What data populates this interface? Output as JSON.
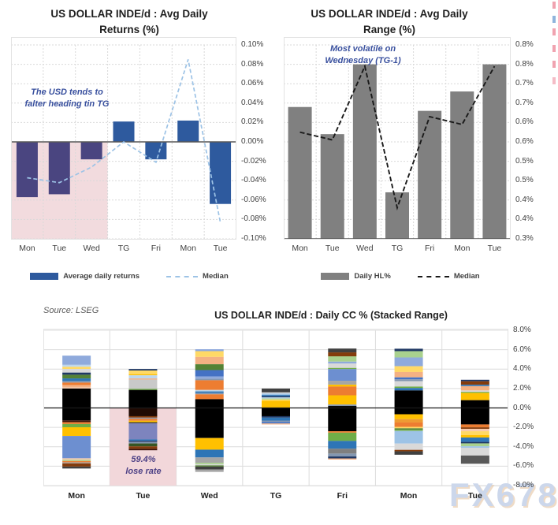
{
  "source_note": "Source: LSEG",
  "watermark": "FX678",
  "edge_marks": [
    {
      "y": 2,
      "color": "#f0a3b0"
    },
    {
      "y": 20,
      "color": "#8fb4dc"
    },
    {
      "y": 36,
      "color": "#f0a3b0"
    },
    {
      "y": 57,
      "color": "#f0a3b0"
    },
    {
      "y": 77,
      "color": "#f0a3b0"
    },
    {
      "y": 98,
      "color": "#f4bcc6"
    }
  ],
  "chart_data": [
    {
      "type": "bar",
      "title_line1": "US DOLLAR INDE/d : Avg Daily",
      "title_line2": "Returns (%)",
      "annotation": [
        "The USD tends to",
        "falter heading tin TG"
      ],
      "annotation_color": "#39509E",
      "categories": [
        "Mon",
        "Tue",
        "Wed",
        "TG",
        "Fri",
        "Mon",
        "Tue"
      ],
      "series": [
        {
          "name": "Average daily returns",
          "type": "bar",
          "values": [
            -0.057,
            -0.054,
            -0.018,
            0.021,
            -0.018,
            0.022,
            -0.064
          ],
          "bar_colors": [
            "#4A4580",
            "#4A4580",
            "#4A4580",
            "#2E5A9E",
            "#2E5A9E",
            "#2E5A9E",
            "#2E5A9E"
          ]
        },
        {
          "name": "Median",
          "type": "line",
          "dashed": true,
          "color": "#9DC3E6",
          "values": [
            -0.037,
            -0.042,
            -0.026,
            0.0,
            -0.021,
            0.085,
            -0.083
          ]
        }
      ],
      "ylim": [
        -0.1,
        0.1
      ],
      "yticks": [
        "0.10%",
        "0.08%",
        "0.06%",
        "0.04%",
        "0.02%",
        "0.00%",
        "-0.02%",
        "-0.04%",
        "-0.06%",
        "-0.08%",
        "-0.10%"
      ],
      "highlight": {
        "note": "pink shading over Mon-Wed below zero",
        "color": "#F2DBDE"
      },
      "legend": [
        {
          "label": "Average daily returns",
          "swatch": "#2E5A9E",
          "dashed": false
        },
        {
          "label": "Median",
          "swatch": "#9DC3E6",
          "dashed": true
        }
      ],
      "legend_position": "bottom"
    },
    {
      "type": "bar",
      "title_line1": "US DOLLAR INDE/d : Avg Daily",
      "title_line2": "Range (%)",
      "annotation": [
        "Most volatile on",
        "Wednesday (TG-1)"
      ],
      "annotation_color": "#39509E",
      "categories": [
        "Mon",
        "Tue",
        "Wed",
        "TG",
        "Fri",
        "Mon",
        "Tue"
      ],
      "series": [
        {
          "name": "Daily HL%",
          "type": "bar",
          "color": "#808080",
          "values": [
            0.64,
            0.57,
            0.75,
            0.42,
            0.63,
            0.68,
            0.75
          ]
        },
        {
          "name": "Median",
          "type": "line",
          "dashed": true,
          "color": "#1a1a1a",
          "values": [
            0.575,
            0.555,
            0.745,
            0.38,
            0.615,
            0.595,
            0.745
          ]
        }
      ],
      "ylim": [
        0.3,
        0.8
      ],
      "yticks": [
        "0.8%",
        "0.8%",
        "0.7%",
        "0.7%",
        "0.6%",
        "0.6%",
        "0.5%",
        "0.5%",
        "0.4%",
        "0.4%",
        "0.3%"
      ],
      "legend": [
        {
          "label": "Daily HL%",
          "swatch": "#808080",
          "dashed": false
        },
        {
          "label": "Median",
          "swatch": "#1a1a1a",
          "dashed": true
        }
      ],
      "legend_position": "bottom"
    },
    {
      "type": "stacked-bar",
      "title": "US DOLLAR INDE/d : Daily CC % (Stacked Range)",
      "annotation": [
        "59.4%",
        "lose rate"
      ],
      "annotation_color": "#4C4085",
      "highlight_category": "Tue",
      "highlight_color": "#F2D7DA",
      "categories": [
        "Mon",
        "Tue",
        "Wed",
        "TG",
        "Fri",
        "Mon",
        "Tue"
      ],
      "ylim": [
        -8,
        8
      ],
      "yticks": [
        "8.0%",
        "6.0%",
        "4.0%",
        "2.0%",
        "0.0%",
        "-2.0%",
        "-4.0%",
        "-6.0%",
        "-8.0%"
      ],
      "bars": [
        {
          "cat": "Mon",
          "pos": [
            [
              "#8FAADC",
              0.95
            ],
            [
              "#BDD7EE",
              0.2
            ],
            [
              "#FFD966",
              0.22
            ],
            [
              "#D9D9D9",
              0.38
            ],
            [
              "#1F3864",
              0.22
            ],
            [
              "#548235",
              0.38
            ],
            [
              "#2E75B6",
              0.27
            ],
            [
              "#8497B0",
              0.16
            ],
            [
              "#ED7D31",
              0.27
            ],
            [
              "#F4B183",
              0.22
            ],
            [
              "#F8CBAD",
              0.12
            ],
            [
              "#000000",
              2.0
            ]
          ],
          "neg": [
            [
              "#000000",
              1.28
            ],
            [
              "#3B1208",
              0.19
            ],
            [
              "#ED7D31",
              0.19
            ],
            [
              "#70AD47",
              0.33
            ],
            [
              "#FFC000",
              0.9
            ],
            [
              "#6D8FD0",
              2.3
            ],
            [
              "#F8CBAD",
              0.15
            ],
            [
              "#A9D18E",
              0.13
            ],
            [
              "#ED7D31",
              0.13
            ],
            [
              "#A6A6A6",
              0.11
            ],
            [
              "#843C0C",
              0.33
            ],
            [
              "#404040",
              0.2
            ]
          ]
        },
        {
          "cat": "Tue",
          "pos": [
            [
              "#1F3864",
              0.15
            ],
            [
              "#FFD966",
              0.38
            ],
            [
              "#FFC000",
              0.12
            ],
            [
              "#BDD7EE",
              0.32
            ],
            [
              "#F4B183",
              0.12
            ],
            [
              "#C9C9C9",
              0.95
            ],
            [
              "#70AD47",
              0.12
            ],
            [
              "#000000",
              1.85
            ]
          ],
          "neg": [
            [
              "#200A03",
              0.85
            ],
            [
              "#843C0C",
              0.15
            ],
            [
              "#8497B0",
              0.12
            ],
            [
              "#ED7D31",
              0.2
            ],
            [
              "#FFC000",
              0.15
            ],
            [
              "#404040",
              0.12
            ],
            [
              "#7D84BE",
              1.65
            ],
            [
              "#2E75B6",
              0.15
            ],
            [
              "#1F3864",
              0.12
            ],
            [
              "#8497B0",
              0.15
            ],
            [
              "#375623",
              0.3
            ],
            [
              "#843C0C",
              0.25
            ],
            [
              "#3B1208",
              0.15
            ]
          ]
        },
        {
          "cat": "Wed",
          "pos": [
            [
              "#8FAADC",
              0.2
            ],
            [
              "#FFD966",
              0.6
            ],
            [
              "#F4B183",
              0.75
            ],
            [
              "#548235",
              0.6
            ],
            [
              "#4472C4",
              0.65
            ],
            [
              "#8FAADC",
              0.25
            ],
            [
              "#8497B0",
              0.15
            ],
            [
              "#ED7D31",
              1.0
            ],
            [
              "#BDD7EE",
              0.15
            ],
            [
              "#2E75B6",
              0.15
            ],
            [
              "#8497B0",
              0.15
            ],
            [
              "#ED7D31",
              0.5
            ],
            [
              "#000000",
              0.9
            ]
          ],
          "neg": [
            [
              "#000000",
              3.1
            ],
            [
              "#FFC000",
              1.2
            ],
            [
              "#2E75B6",
              0.8
            ],
            [
              "#A6A6A6",
              0.55
            ],
            [
              "#A9D18E",
              0.15
            ],
            [
              "#D9D9D9",
              0.12
            ],
            [
              "#548235",
              0.12
            ],
            [
              "#404040",
              0.3
            ],
            [
              "#A6A6A6",
              0.25
            ]
          ]
        },
        {
          "cat": "TG",
          "pos": [
            [
              "#404040",
              0.4
            ],
            [
              "#D9D9D9",
              0.12
            ],
            [
              "#9DC3E6",
              0.15
            ],
            [
              "#2E75B6",
              0.12
            ],
            [
              "#1F3864",
              0.12
            ],
            [
              "#BDD7EE",
              0.12
            ],
            [
              "#A9D18E",
              0.1
            ],
            [
              "#FFD966",
              0.12
            ],
            [
              "#FFC000",
              0.75
            ]
          ],
          "neg": [
            [
              "#000000",
              0.85
            ],
            [
              "#1F3864",
              0.15
            ],
            [
              "#2E75B6",
              0.3
            ],
            [
              "#8497B0",
              0.15
            ],
            [
              "#4472C4",
              0.15
            ],
            [
              "#F4B183",
              0.1
            ]
          ]
        },
        {
          "cat": "Fri",
          "pos": [
            [
              "#404040",
              0.4
            ],
            [
              "#843C0C",
              0.4
            ],
            [
              "#A9D18E",
              0.55
            ],
            [
              "#8FAADC",
              0.2
            ],
            [
              "#D9D9D9",
              0.45
            ],
            [
              "#70AD47",
              0.12
            ],
            [
              "#6D8FD0",
              1.2
            ],
            [
              "#A6A6A6",
              0.4
            ],
            [
              "#FFC000",
              0.2
            ],
            [
              "#ED7D31",
              0.9
            ],
            [
              "#FFC000",
              0.95
            ],
            [
              "#8497B0",
              0.15
            ],
            [
              "#000000",
              0.2
            ]
          ],
          "neg": [
            [
              "#000000",
              2.4
            ],
            [
              "#ED7D31",
              0.15
            ],
            [
              "#70AD47",
              0.85
            ],
            [
              "#2E75B6",
              0.8
            ],
            [
              "#7F7F7F",
              0.5
            ],
            [
              "#8497B0",
              0.3
            ],
            [
              "#1F3864",
              0.2
            ],
            [
              "#F4B183",
              0.12
            ]
          ]
        },
        {
          "cat": "Mon",
          "pos": [
            [
              "#1F3864",
              0.25
            ],
            [
              "#A9D18E",
              0.65
            ],
            [
              "#8FAADC",
              0.9
            ],
            [
              "#FFD966",
              0.6
            ],
            [
              "#F4B183",
              0.55
            ],
            [
              "#4472C4",
              0.2
            ],
            [
              "#8497B0",
              0.2
            ],
            [
              "#D9D9D9",
              0.55
            ],
            [
              "#70AD47",
              0.15
            ],
            [
              "#2E75B6",
              0.25
            ],
            [
              "#000000",
              1.8
            ]
          ],
          "neg": [
            [
              "#000000",
              0.65
            ],
            [
              "#FFC000",
              0.5
            ],
            [
              "#ED9B33",
              0.35
            ],
            [
              "#ED7D31",
              0.45
            ],
            [
              "#FFD966",
              0.15
            ],
            [
              "#548235",
              0.15
            ],
            [
              "#70AD47",
              0.12
            ],
            [
              "#9DC3E6",
              1.3
            ],
            [
              "#D9D9D9",
              0.65
            ],
            [
              "#843C0C",
              0.15
            ],
            [
              "#404040",
              0.35
            ]
          ]
        },
        {
          "cat": "Tue",
          "pos": [
            [
              "#1F3864",
              0.15
            ],
            [
              "#843C0C",
              0.35
            ],
            [
              "#2E75B6",
              0.15
            ],
            [
              "#F4B183",
              0.45
            ],
            [
              "#D9D9D9",
              0.15
            ],
            [
              "#70AD47",
              0.1
            ],
            [
              "#FFC000",
              0.75
            ],
            [
              "#000000",
              0.8
            ]
          ],
          "neg": [
            [
              "#000000",
              1.7
            ],
            [
              "#ED7D31",
              0.3
            ],
            [
              "#843C0C",
              0.15
            ],
            [
              "#F8CBAD",
              0.25
            ],
            [
              "#FFD966",
              0.4
            ],
            [
              "#FFC000",
              0.25
            ],
            [
              "#2E75B6",
              0.45
            ],
            [
              "#1F3864",
              0.15
            ],
            [
              "#A9D18E",
              0.3
            ],
            [
              "#9DC3E6",
              0.15
            ],
            [
              "#D9D9D9",
              0.8
            ],
            [
              "#595959",
              0.85
            ]
          ]
        }
      ]
    }
  ]
}
